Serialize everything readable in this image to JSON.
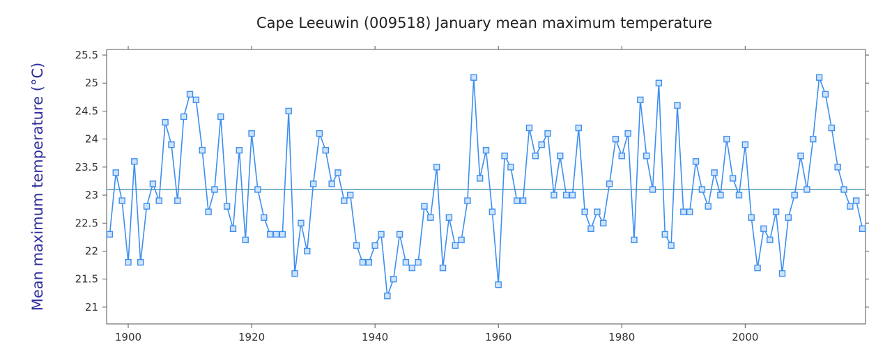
{
  "chart_data": {
    "type": "line",
    "title": "Cape Leeuwin (009518) January mean maximum temperature",
    "xlabel": "",
    "ylabel": "Mean maximum temperature (°C)",
    "xlim": [
      1896.5,
      2019.5
    ],
    "ylim": [
      20.7,
      25.6
    ],
    "x_ticks": [
      1900,
      1920,
      1940,
      1960,
      1980,
      2000
    ],
    "x_tick_labels": [
      "1900",
      "1920",
      "1940",
      "1960",
      "1980",
      "2000"
    ],
    "y_ticks": [
      21,
      21.5,
      22,
      22.5,
      23,
      23.5,
      24,
      24.5,
      25,
      25.5
    ],
    "y_tick_labels": [
      "21",
      "21.5",
      "22",
      "22.5",
      "23",
      "23.5",
      "24",
      "24.5",
      "25",
      "25.5"
    ],
    "grid": false,
    "reference_line": {
      "y": 23.1
    },
    "series": [
      {
        "x": [
          1897,
          1898,
          1899,
          1900,
          1901,
          1902,
          1903,
          1904,
          1905,
          1906,
          1907,
          1908,
          1909,
          1910,
          1911,
          1912,
          1913,
          1914,
          1915,
          1916,
          1917,
          1918,
          1919,
          1920,
          1921,
          1922,
          1923,
          1924,
          1925,
          1926,
          1927,
          1928,
          1929,
          1930,
          1931,
          1932,
          1933,
          1934,
          1935,
          1936,
          1937,
          1938,
          1939,
          1940,
          1941,
          1942,
          1943,
          1944,
          1945,
          1946,
          1947,
          1948,
          1949,
          1950,
          1951,
          1952,
          1953,
          1954,
          1955,
          1956,
          1957,
          1958,
          1959,
          1960,
          1961,
          1962,
          1963,
          1964,
          1965,
          1966,
          1967,
          1968,
          1969,
          1970,
          1971,
          1972,
          1973,
          1974,
          1975,
          1976,
          1977,
          1978,
          1979,
          1980,
          1981,
          1982,
          1983,
          1984,
          1985,
          1986,
          1987,
          1988,
          1989,
          1990,
          1991,
          1992,
          1993,
          1994,
          1995,
          1996,
          1997,
          1998,
          1999,
          2000,
          2001,
          2002,
          2003,
          2004,
          2005,
          2006,
          2007,
          2008,
          2009,
          2010,
          2011,
          2012,
          2013,
          2014,
          2015,
          2016,
          2017,
          2018,
          2019
        ],
        "values": [
          22.3,
          23.4,
          22.9,
          21.8,
          23.6,
          21.8,
          22.8,
          23.2,
          22.9,
          24.3,
          23.9,
          22.9,
          24.4,
          24.8,
          24.7,
          23.8,
          22.7,
          23.1,
          24.4,
          22.8,
          22.4,
          23.8,
          22.2,
          24.1,
          23.1,
          22.6,
          22.3,
          22.3,
          22.3,
          24.5,
          21.6,
          22.5,
          22.0,
          23.2,
          24.1,
          23.8,
          23.2,
          23.4,
          22.9,
          23.0,
          22.1,
          21.8,
          21.8,
          22.1,
          22.3,
          21.2,
          21.5,
          22.3,
          21.8,
          21.7,
          21.8,
          22.8,
          22.6,
          23.5,
          21.7,
          22.6,
          22.1,
          22.2,
          22.9,
          25.1,
          23.3,
          23.8,
          22.7,
          21.4,
          23.7,
          23.5,
          22.9,
          22.9,
          24.2,
          23.7,
          23.9,
          24.1,
          23.0,
          23.7,
          23.0,
          23.0,
          24.2,
          22.7,
          22.4,
          22.7,
          22.5,
          23.2,
          24.0,
          23.7,
          24.1,
          22.2,
          24.7,
          23.7,
          23.1,
          25.0,
          22.3,
          22.1,
          24.6,
          22.7,
          22.7,
          23.6,
          23.1,
          22.8,
          23.4,
          23.0,
          24.0,
          23.3,
          23.0,
          23.9,
          22.6,
          21.7,
          22.4,
          22.2,
          22.7,
          21.6,
          22.6,
          23.0,
          23.7,
          23.1,
          24.0,
          25.1,
          24.8,
          24.2,
          23.5,
          23.1,
          22.8,
          22.9,
          22.4
        ]
      }
    ],
    "colors": {
      "series": "#3d8fef",
      "marker_fill": "#cfe3fb",
      "reference_line": "#7fb5c8",
      "axes": "#555555",
      "ylabel": "#2e2e9a"
    }
  }
}
